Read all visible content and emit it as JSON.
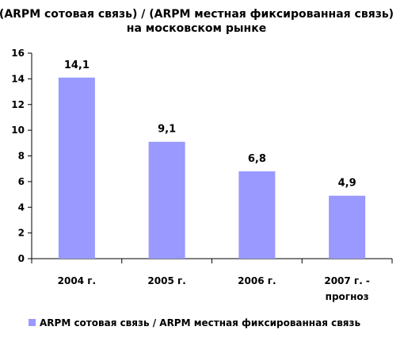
{
  "chart_data": {
    "type": "bar",
    "title_lines": [
      "(ARPM сотовая связь) / (ARPM местная фиксированная связь)",
      "на московском рынке"
    ],
    "categories": [
      [
        "2004 г."
      ],
      [
        "2005 г."
      ],
      [
        "2006 г."
      ],
      [
        "2007 г. -",
        "прогноз"
      ]
    ],
    "series": [
      {
        "name": "ARPM сотовая связь / ARPM местная фиксированная связь",
        "values": [
          14.1,
          9.1,
          6.8,
          4.9
        ],
        "value_labels": [
          "14,1",
          "9,1",
          "6,8",
          "4,9"
        ],
        "color": "#9999ff"
      }
    ],
    "y_ticks": [
      0,
      2,
      4,
      6,
      8,
      10,
      12,
      14,
      16
    ],
    "ylim": [
      0,
      16
    ],
    "grid": false,
    "legend_position": "bottom",
    "xlabel": "",
    "ylabel": ""
  }
}
